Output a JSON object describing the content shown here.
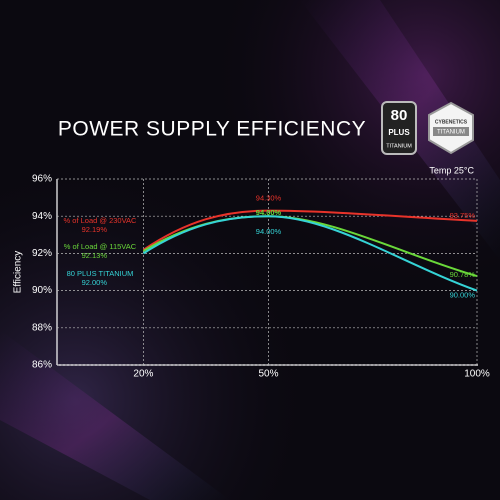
{
  "chart_data": {
    "type": "line",
    "title": "POWER SUPPLY EFFICIENCY",
    "badges": [
      {
        "lines": [
          "80",
          "PLUS",
          "TITANIUM"
        ]
      },
      {
        "lines": [
          "CYBENETICS",
          "TITANIUM"
        ]
      }
    ],
    "annotation": "Temp 25°C",
    "y_label": "Efficiency",
    "x": [
      20,
      50,
      100
    ],
    "xlim": [
      0,
      100
    ],
    "xticks": [
      {
        "value": 20,
        "label": "20%"
      },
      {
        "value": 50,
        "label": "50%"
      },
      {
        "value": 100,
        "label": "100%"
      }
    ],
    "ylim": [
      86,
      96
    ],
    "yticks": [
      {
        "value": 86,
        "label": "86%"
      },
      {
        "value": 88,
        "label": "88%"
      },
      {
        "value": 90,
        "label": "90%"
      },
      {
        "value": 92,
        "label": "92%"
      },
      {
        "value": 94,
        "label": "94%"
      },
      {
        "value": 96,
        "label": "96%"
      }
    ],
    "grid": true,
    "series": [
      {
        "name": "% of Load @ 230VAC",
        "color": "#e8332a",
        "values": [
          92.19,
          94.3,
          93.75
        ],
        "value_labels": [
          "92.19%",
          "94.30%",
          "93.75%"
        ]
      },
      {
        "name": "% of Load @ 115VAC",
        "color": "#6ad83a",
        "values": [
          92.13,
          94.0,
          90.78
        ],
        "value_labels": [
          "92.13%",
          "94.00%",
          "90.78%"
        ]
      },
      {
        "name": "80 PLUS TITANIUM",
        "color": "#35d3d6",
        "values": [
          92.0,
          94.0,
          90.0
        ],
        "value_labels": [
          "92.00%",
          "94.00%",
          "90.00%"
        ]
      }
    ]
  }
}
